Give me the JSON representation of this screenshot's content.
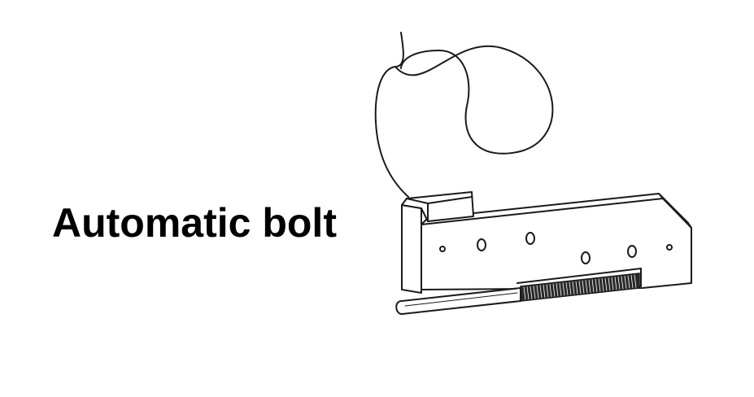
{
  "diagram": {
    "label": "Automatic bolt",
    "line_color": "#1a1a1a",
    "fill_color": "#ffffff"
  }
}
